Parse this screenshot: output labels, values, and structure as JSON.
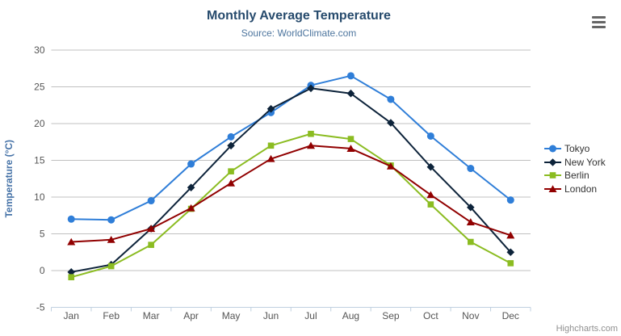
{
  "credit": {
    "label": "Highcharts.com"
  },
  "chart_data": {
    "type": "line",
    "title": "Monthly Average Temperature",
    "subtitle": "Source: WorldClimate.com",
    "xlabel": "",
    "ylabel": "Temperature (°C)",
    "categories": [
      "Jan",
      "Feb",
      "Mar",
      "Apr",
      "May",
      "Jun",
      "Jul",
      "Aug",
      "Sep",
      "Oct",
      "Nov",
      "Dec"
    ],
    "ylim": [
      -5,
      30
    ],
    "yticks": [
      -5,
      0,
      5,
      10,
      15,
      20,
      25,
      30
    ],
    "grid": true,
    "legend_position": "right",
    "series": [
      {
        "name": "Tokyo",
        "color": "#2f7ed8",
        "marker": "circle",
        "values": [
          7.0,
          6.9,
          9.5,
          14.5,
          18.2,
          21.5,
          25.2,
          26.5,
          23.3,
          18.3,
          13.9,
          9.6
        ]
      },
      {
        "name": "New York",
        "color": "#0d233a",
        "marker": "diamond",
        "values": [
          -0.2,
          0.8,
          5.7,
          11.3,
          17.0,
          22.0,
          24.8,
          24.1,
          20.1,
          14.1,
          8.6,
          2.5
        ]
      },
      {
        "name": "Berlin",
        "color": "#8bbc21",
        "marker": "square",
        "values": [
          -0.9,
          0.6,
          3.5,
          8.4,
          13.5,
          17.0,
          18.6,
          17.9,
          14.3,
          9.0,
          3.9,
          1.0
        ]
      },
      {
        "name": "London",
        "color": "#910000",
        "marker": "triangle",
        "values": [
          3.9,
          4.2,
          5.7,
          8.5,
          11.9,
          15.2,
          17.0,
          16.6,
          14.2,
          10.3,
          6.6,
          4.8
        ]
      }
    ],
    "colors": {
      "title": "#274b6d",
      "subtitle": "#4d759e",
      "axis_title": "#4572a7",
      "axis_labels": "#555555",
      "gridline": "#c0c0c0",
      "axis_line": "#c0d0e0",
      "legend_text": "#333333",
      "credit": "#909090",
      "menu_icon": "#666666"
    }
  }
}
